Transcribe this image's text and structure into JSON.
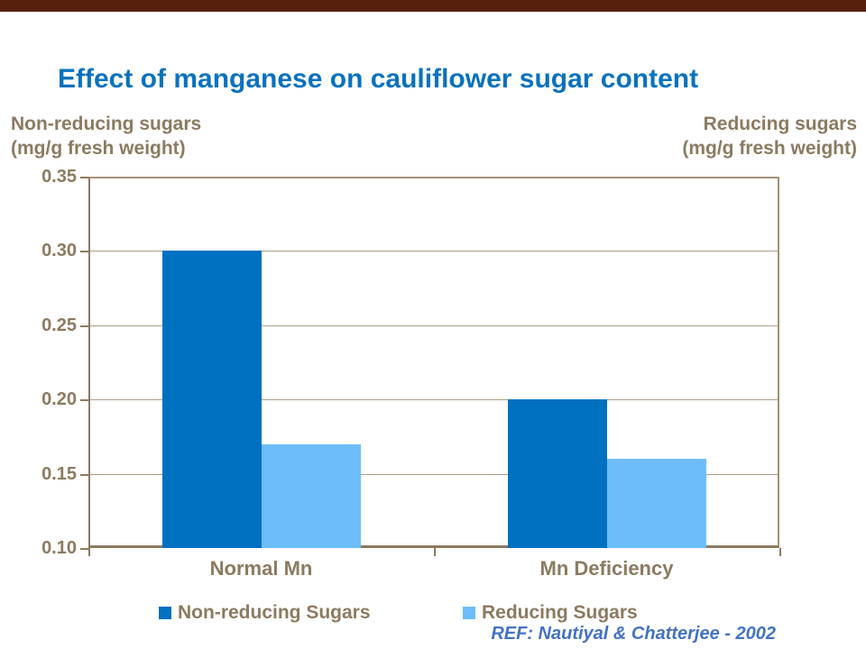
{
  "page": {
    "top_bar_color": "#551F0C",
    "background_color": "#FFFFFF"
  },
  "title": {
    "text": "Effect of manganese on cauliflower sugar content",
    "color": "#0A72BE"
  },
  "axis_headers": {
    "left_line1": "Non-reducing sugars",
    "left_line2": "(mg/g fresh weight)",
    "right_line1": "Reducing sugars",
    "right_line2": "(mg/g fresh weight)"
  },
  "reference": {
    "text": "REF: Nautiyal & Chatterjee - 2002",
    "color": "#4472C4"
  },
  "colors": {
    "axis_text": "#8C7A60",
    "gridline": "#AC9C86",
    "plot_border": "#A39078"
  },
  "chart_data": {
    "type": "bar",
    "title": "Effect of manganese on cauliflower sugar content",
    "categories": [
      "Normal Mn",
      "Mn Deficiency"
    ],
    "series": [
      {
        "name": "Non-reducing Sugars",
        "color": "#0070C0",
        "values": [
          0.3,
          0.2
        ]
      },
      {
        "name": "Reducing Sugars",
        "color": "#6DBDFB",
        "values": [
          0.17,
          0.16
        ]
      }
    ],
    "ylabel_left": "Non-reducing sugars (mg/g fresh weight)",
    "ylabel_right": "Reducing sugars (mg/g fresh weight)",
    "ylim": [
      0.1,
      0.35
    ],
    "y_ticks": [
      "0.35",
      "0.30",
      "0.25",
      "0.20",
      "0.15",
      "0.10"
    ],
    "grid": true,
    "legend_position": "bottom"
  }
}
